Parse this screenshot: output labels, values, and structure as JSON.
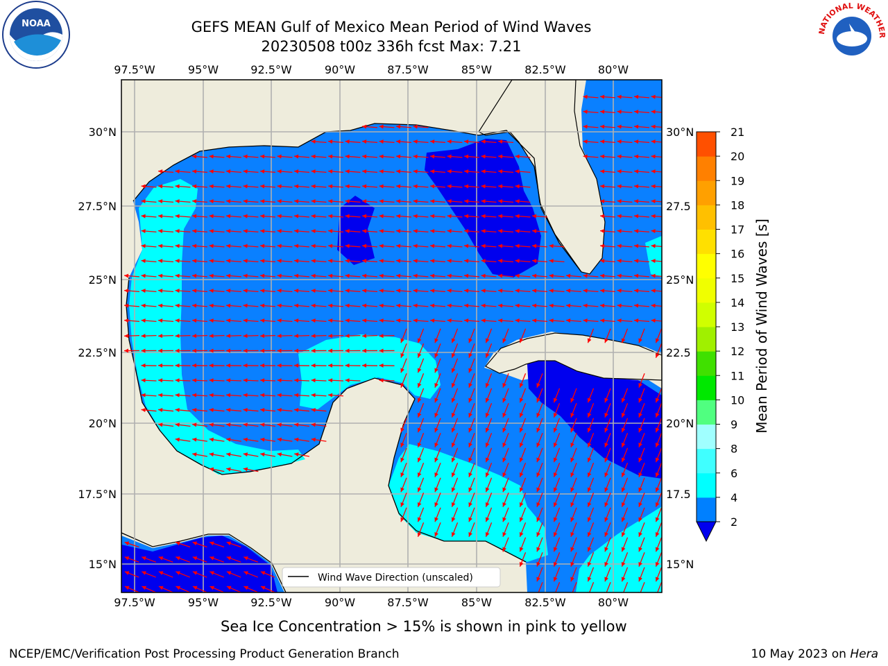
{
  "header": {
    "title_line1": "GEFS MEAN Gulf of Mexico Mean Period of Wind Waves",
    "title_line2": "20230508 t00z 336h fcst   Max: 7.21"
  },
  "logos": {
    "left": "NOAA",
    "right": "NATIONAL WEATHER SERVICE"
  },
  "map": {
    "lon_labels": [
      "97.5°W",
      "95°W",
      "92.5°W",
      "90°W",
      "87.5°W",
      "85°W",
      "82.5°W",
      "80°W"
    ],
    "lat_labels_left": [
      "30°N",
      "27.5°N",
      "25°N",
      "22.5°N",
      "20°N",
      "17.5°N",
      "15°N"
    ],
    "lat_labels_right": [
      "30°N",
      "27.5",
      "25°N",
      "22.5",
      "20°N",
      "17.5",
      "15°N"
    ],
    "legend_label": "Wind Wave Direction (unscaled)",
    "colors": {
      "land": "#eeecdc",
      "water_2_4": "#0a80ff",
      "water_lt2": "#0000ee",
      "water_4_6": "#00ffff",
      "arrow": "#ff0000",
      "grid": "#b0b0b0"
    }
  },
  "colorbar": {
    "title": "Mean Period of Wind Waves [s]",
    "levels": [
      "2",
      "4",
      "6",
      "8",
      "9",
      "10",
      "11",
      "12",
      "13",
      "14",
      "15",
      "16",
      "17",
      "18",
      "19",
      "20",
      "21"
    ],
    "colors": [
      "#0080ff",
      "#00ffff",
      "#40ffff",
      "#a0ffff",
      "#50ff80",
      "#00e800",
      "#40e000",
      "#a0f000",
      "#d0ff00",
      "#f0ff00",
      "#ffff00",
      "#ffe000",
      "#ffc000",
      "#ffa000",
      "#ff8000",
      "#ff5000",
      "#ff2800",
      "#ff0000"
    ],
    "under_color": "#0000ee"
  },
  "caption": "Sea Ice Concentration > 15% is shown in pink to yellow",
  "footer": {
    "left": "NCEP/EMC/Verification Post Processing Product Generation Branch",
    "right_date": "10 May 2023 on ",
    "right_machine": "Hera"
  }
}
